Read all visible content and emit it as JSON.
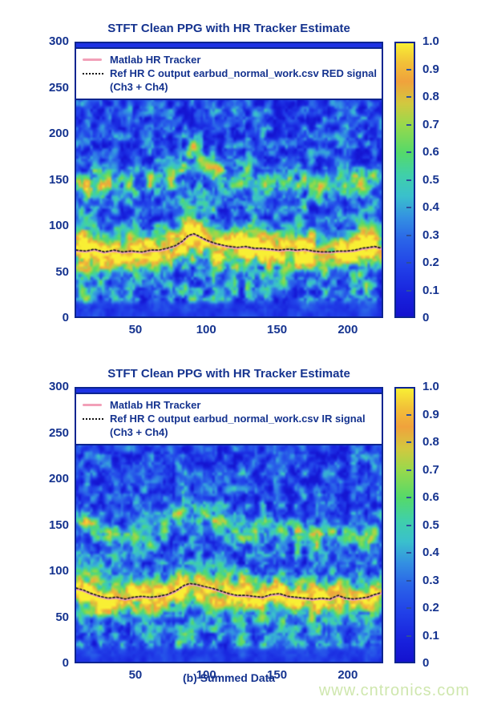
{
  "page": {
    "caption": "(b) Summed Data",
    "watermark": "www.cntronics.com"
  },
  "colors": {
    "accent_text": "#15338f",
    "axis_border": "#0d2590",
    "tracker_pink": "#f2a0b8",
    "ref_black": "#1a1a1a",
    "watermark_green": "#cfe7ae",
    "background": "#ffffff"
  },
  "colormap": {
    "stops": [
      [
        0.0,
        "#1412cf"
      ],
      [
        0.08,
        "#1822dd"
      ],
      [
        0.18,
        "#2140e8"
      ],
      [
        0.28,
        "#2a64e8"
      ],
      [
        0.36,
        "#338fe2"
      ],
      [
        0.44,
        "#3ac0cc"
      ],
      [
        0.52,
        "#40d0a8"
      ],
      [
        0.6,
        "#55d969"
      ],
      [
        0.7,
        "#97d94c"
      ],
      [
        0.78,
        "#d2c83f"
      ],
      [
        0.86,
        "#f0a23c"
      ],
      [
        0.93,
        "#f2c138"
      ],
      [
        1.0,
        "#f8ef34"
      ]
    ]
  },
  "chart_data": [
    {
      "type": "heatmap",
      "title": "STFT Clean PPG with HR Tracker Estimate",
      "xlabel": "",
      "ylabel": "",
      "xlim": [
        7,
        225
      ],
      "ylim": [
        0,
        300
      ],
      "x_ticks": [
        50,
        100,
        150,
        200
      ],
      "y_ticks": [
        300,
        250,
        200,
        150,
        100,
        50,
        0
      ],
      "colorbar_ticks": [
        "1.0",
        "0.9",
        "0.8",
        "0.7",
        "0.6",
        "0.5",
        "0.4",
        "0.3",
        "0.2",
        "0.1",
        "0"
      ],
      "legend_position": "top-inside",
      "legend": [
        {
          "label": "Matlab HR Tracker",
          "swatch": "pink-line"
        },
        {
          "label": "Ref HR C output earbud_normal_work.csv RED signal",
          "label2": "(Ch3 + Ch4)",
          "swatch": "black-dotted"
        }
      ],
      "tracker_line_bpm": [
        [
          7,
          72
        ],
        [
          14,
          71
        ],
        [
          20,
          73
        ],
        [
          27,
          70
        ],
        [
          34,
          72
        ],
        [
          40,
          70
        ],
        [
          47,
          71
        ],
        [
          54,
          70
        ],
        [
          60,
          72
        ],
        [
          66,
          72
        ],
        [
          72,
          74
        ],
        [
          78,
          77
        ],
        [
          83,
          82
        ],
        [
          87,
          88
        ],
        [
          91,
          90
        ],
        [
          95,
          87
        ],
        [
          100,
          83
        ],
        [
          105,
          80
        ],
        [
          110,
          78
        ],
        [
          116,
          76
        ],
        [
          122,
          75
        ],
        [
          128,
          76
        ],
        [
          134,
          74
        ],
        [
          140,
          74
        ],
        [
          146,
          73
        ],
        [
          152,
          72
        ],
        [
          158,
          73
        ],
        [
          164,
          72
        ],
        [
          170,
          73
        ],
        [
          176,
          71
        ],
        [
          182,
          70
        ],
        [
          188,
          70
        ],
        [
          194,
          71
        ],
        [
          200,
          71
        ],
        [
          206,
          72
        ],
        [
          211,
          74
        ],
        [
          216,
          75
        ],
        [
          220,
          76
        ],
        [
          225,
          74
        ]
      ],
      "heatmap": {
        "seed": 11,
        "base": 0.12,
        "noise_amp": 0.56,
        "fund_amp": 0.95,
        "fund_sigma": 13,
        "harm_amp": 0.42,
        "harm_sigma": 10,
        "bursts": [
          [
            13,
            0.95
          ],
          [
            24,
            0.85
          ],
          [
            36,
            0.55
          ],
          [
            48,
            0.6
          ],
          [
            60,
            0.55
          ],
          [
            72,
            0.5
          ],
          [
            85,
            0.9
          ],
          [
            96,
            0.6
          ],
          [
            108,
            0.75
          ],
          [
            120,
            0.5
          ],
          [
            130,
            0.85
          ],
          [
            142,
            0.6
          ],
          [
            155,
            0.5
          ],
          [
            170,
            0.95
          ],
          [
            183,
            0.55
          ],
          [
            196,
            0.5
          ],
          [
            208,
            0.6
          ],
          [
            216,
            0.9
          ]
        ]
      }
    },
    {
      "type": "heatmap",
      "title": "STFT Clean PPG with HR Tracker Estimate",
      "xlabel": "",
      "ylabel": "",
      "xlim": [
        7,
        225
      ],
      "ylim": [
        0,
        300
      ],
      "x_ticks": [
        50,
        100,
        150,
        200
      ],
      "y_ticks": [
        300,
        250,
        200,
        150,
        100,
        50,
        0
      ],
      "colorbar_ticks": [
        "1.0",
        "0.9",
        "0.8",
        "0.7",
        "0.6",
        "0.5",
        "0.4",
        "0.3",
        "0.2",
        "0.1",
        "0"
      ],
      "legend_position": "top-inside",
      "legend": [
        {
          "label": "Matlab HR Tracker",
          "swatch": "pink-line"
        },
        {
          "label": "Ref HR C output earbud_normal_work.csv IR signal",
          "label2": "(Ch3 + Ch4)",
          "swatch": "black-dotted"
        }
      ],
      "tracker_line_bpm": [
        [
          7,
          80
        ],
        [
          12,
          78
        ],
        [
          18,
          74
        ],
        [
          24,
          71
        ],
        [
          30,
          69
        ],
        [
          36,
          70
        ],
        [
          42,
          68
        ],
        [
          48,
          70
        ],
        [
          54,
          71
        ],
        [
          60,
          70
        ],
        [
          66,
          71
        ],
        [
          72,
          73
        ],
        [
          78,
          77
        ],
        [
          84,
          83
        ],
        [
          88,
          85
        ],
        [
          93,
          84
        ],
        [
          98,
          82
        ],
        [
          104,
          80
        ],
        [
          110,
          77
        ],
        [
          116,
          74
        ],
        [
          122,
          72
        ],
        [
          128,
          72
        ],
        [
          134,
          71
        ],
        [
          140,
          70
        ],
        [
          146,
          73
        ],
        [
          152,
          74
        ],
        [
          158,
          71
        ],
        [
          164,
          70
        ],
        [
          170,
          69
        ],
        [
          176,
          68
        ],
        [
          182,
          69
        ],
        [
          188,
          68
        ],
        [
          194,
          72
        ],
        [
          199,
          69
        ],
        [
          205,
          68
        ],
        [
          210,
          69
        ],
        [
          215,
          70
        ],
        [
          220,
          73
        ],
        [
          225,
          75
        ]
      ],
      "heatmap": {
        "seed": 29,
        "base": 0.12,
        "noise_amp": 0.54,
        "fund_amp": 0.9,
        "fund_sigma": 12,
        "harm_amp": 0.38,
        "harm_sigma": 10,
        "bursts": [
          [
            12,
            0.8
          ],
          [
            22,
            0.7
          ],
          [
            34,
            0.6
          ],
          [
            46,
            0.55
          ],
          [
            58,
            0.6
          ],
          [
            70,
            0.5
          ],
          [
            82,
            0.9
          ],
          [
            94,
            0.6
          ],
          [
            106,
            0.65
          ],
          [
            118,
            0.55
          ],
          [
            128,
            0.8
          ],
          [
            141,
            0.6
          ],
          [
            153,
            0.55
          ],
          [
            166,
            0.7
          ],
          [
            180,
            0.85
          ],
          [
            193,
            0.5
          ],
          [
            205,
            0.55
          ],
          [
            217,
            0.8
          ]
        ]
      }
    }
  ]
}
